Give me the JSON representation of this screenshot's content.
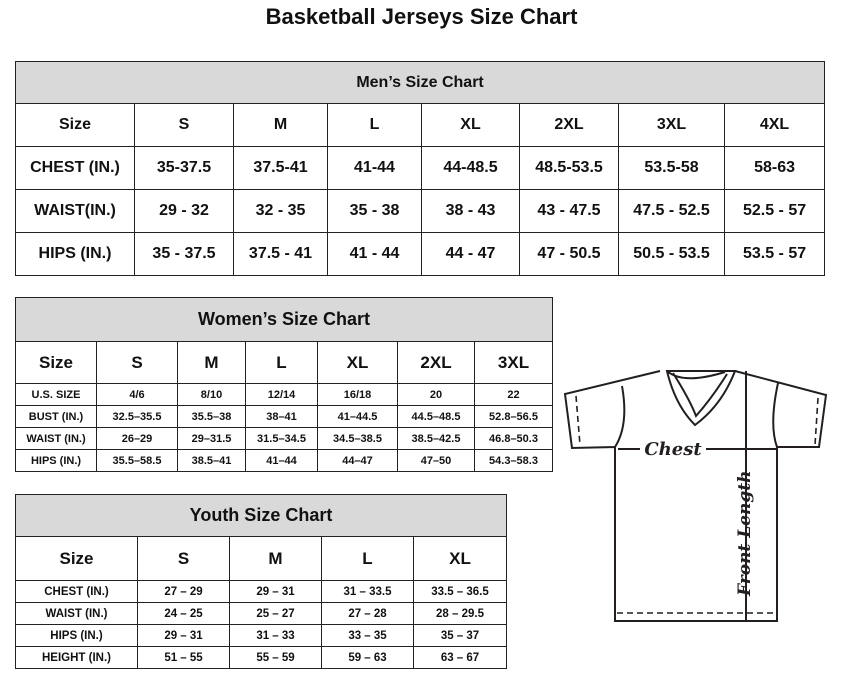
{
  "title": "Basketball Jerseys Size Chart",
  "men": {
    "caption": "Men’s Size Chart",
    "headers": [
      "Size",
      "S",
      "M",
      "L",
      "XL",
      "2XL",
      "3XL",
      "4XL"
    ],
    "rows": [
      [
        "CHEST (IN.)",
        "35-37.5",
        "37.5-41",
        "41-44",
        "44-48.5",
        "48.5-53.5",
        "53.5-58",
        "58-63"
      ],
      [
        "WAIST(IN.)",
        "29 - 32",
        "32 - 35",
        "35 - 38",
        "38 - 43",
        "43 - 47.5",
        "47.5 - 52.5",
        "52.5 - 57"
      ],
      [
        "HIPS (IN.)",
        "35 - 37.5",
        "37.5 - 41",
        "41 - 44",
        "44 - 47",
        "47 - 50.5",
        "50.5 - 53.5",
        "53.5 - 57"
      ]
    ]
  },
  "women": {
    "caption": "Women’s Size Chart",
    "headers": [
      "Size",
      "S",
      "M",
      "L",
      "XL",
      "2XL",
      "3XL"
    ],
    "rows": [
      [
        "U.S.  SIZE",
        "4/6",
        "8/10",
        "12/14",
        "16/18",
        "20",
        "22"
      ],
      [
        "BUST  (IN.)",
        "32.5–35.5",
        "35.5–38",
        "38–41",
        "41–44.5",
        "44.5–48.5",
        "52.8–56.5"
      ],
      [
        "WAIST  (IN.)",
        "26–29",
        "29–31.5",
        "31.5–34.5",
        "34.5–38.5",
        "38.5–42.5",
        "46.8–50.3"
      ],
      [
        "HIPS  (IN.)",
        "35.5–58.5",
        "38.5–41",
        "41–44",
        "44–47",
        "47–50",
        "54.3–58.3"
      ]
    ]
  },
  "youth": {
    "caption": "Youth Size Chart",
    "headers": [
      "Size",
      "S",
      "M",
      "L",
      "XL"
    ],
    "rows": [
      [
        "CHEST  (IN.)",
        "27  –  29",
        "29  –  31",
        "31  –  33.5",
        "33.5  –  36.5"
      ],
      [
        "WAIST  (IN.)",
        "24  –  25",
        "25  –  27",
        "27  –  28",
        "28  –  29.5"
      ],
      [
        "HIPS  (IN.)",
        "29  –  31",
        "31  –  33",
        "33  –  35",
        "35  –  37"
      ],
      [
        "HEIGHT  (IN.)",
        "51  –  55",
        "55  –  59",
        "59  –  63",
        "63  –  67"
      ]
    ]
  },
  "diagram": {
    "chest_label": "Chest",
    "length_label": "Front Length"
  }
}
